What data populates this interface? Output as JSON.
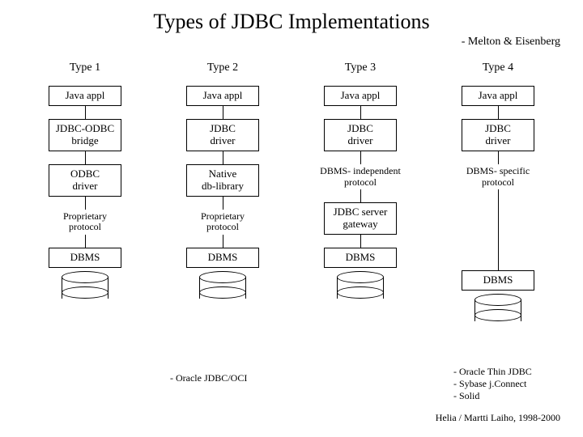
{
  "title": "Types of JDBC Implementations",
  "subtitle": "- Melton & Eisenberg",
  "footer": "Helia / Martti Laiho, 1998-2000",
  "columns": [
    {
      "header": "Type 1",
      "nodes": [
        {
          "kind": "box",
          "text": "Java appl"
        },
        {
          "kind": "box",
          "text": "JDBC-ODBC\nbridge"
        },
        {
          "kind": "box",
          "text": "ODBC\ndriver"
        },
        {
          "kind": "plain",
          "text": "Proprietary\nprotocol"
        },
        {
          "kind": "box",
          "text": "DBMS"
        }
      ],
      "footnote": null
    },
    {
      "header": "Type 2",
      "nodes": [
        {
          "kind": "box",
          "text": "Java appl"
        },
        {
          "kind": "box",
          "text": "JDBC\ndriver"
        },
        {
          "kind": "box",
          "text": "Native\ndb-library"
        },
        {
          "kind": "plain",
          "text": "Proprietary\nprotocol"
        },
        {
          "kind": "box",
          "text": "DBMS"
        }
      ],
      "footnote": "- Oracle JDBC/OCI"
    },
    {
      "header": "Type 3",
      "nodes": [
        {
          "kind": "box",
          "text": "Java appl"
        },
        {
          "kind": "box",
          "text": "JDBC\ndriver"
        },
        {
          "kind": "plain",
          "text": "DBMS- independent\nprotocol"
        },
        {
          "kind": "box",
          "text": "JDBC server\ngateway"
        },
        {
          "kind": "box",
          "text": "DBMS"
        }
      ],
      "footnote": null
    },
    {
      "header": "Type 4",
      "nodes": [
        {
          "kind": "box",
          "text": "Java appl"
        },
        {
          "kind": "box",
          "text": "JDBC\ndriver"
        },
        {
          "kind": "plain",
          "text": "DBMS- specific\nprotocol",
          "long_after": true
        },
        {
          "kind": "box",
          "text": "DBMS"
        }
      ],
      "footnote": "- Oracle Thin JDBC\n- Sybase j.Connect\n- Solid"
    }
  ],
  "style": {
    "background_color": "#ffffff",
    "text_color": "#000000",
    "border_color": "#000000",
    "font_family": "Times New Roman",
    "title_fontsize": 26,
    "header_fontsize": 14,
    "node_fontsize": 13,
    "plain_fontsize": 12,
    "footnote_fontsize": 12,
    "connector_height": 16,
    "connector_long_height": 100,
    "cylinder": {
      "width": 58,
      "height": 34
    }
  }
}
